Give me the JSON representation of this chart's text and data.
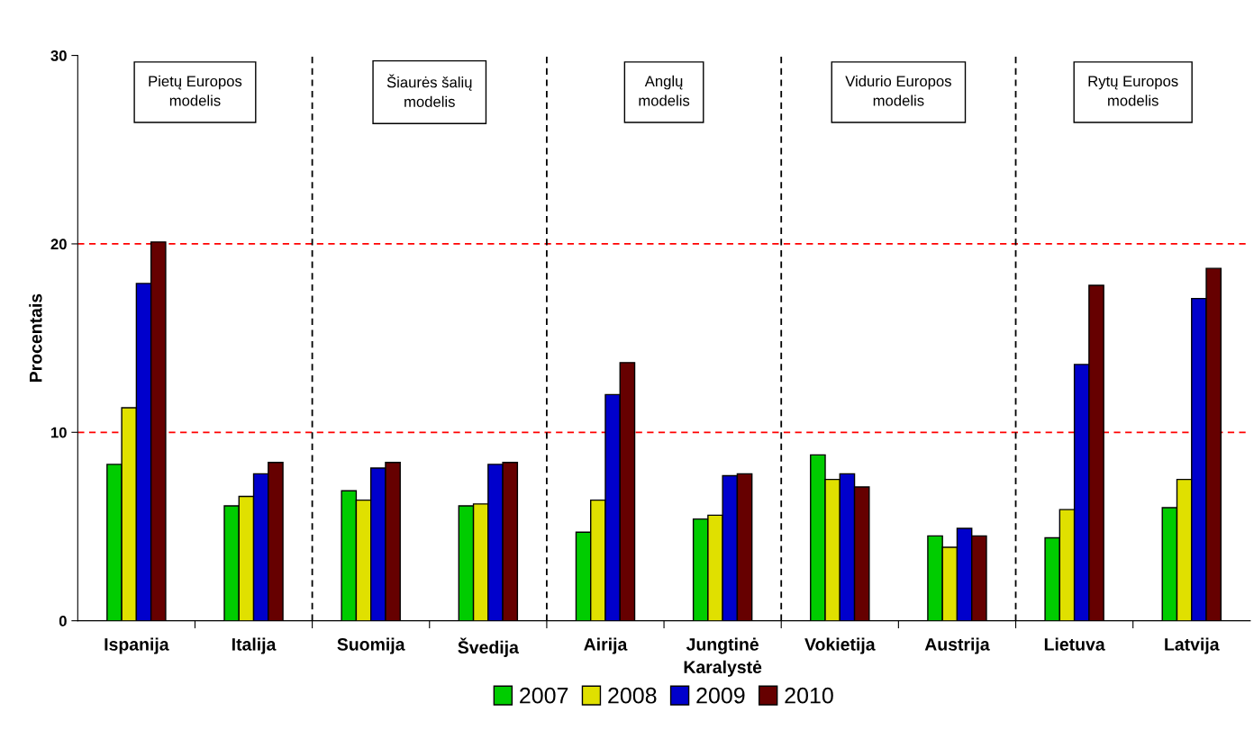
{
  "chart_data": {
    "type": "bar",
    "ylabel": "Procentais",
    "categories": [
      "Ispanija",
      "Italija",
      "Suomija",
      "Švedija",
      "Airija",
      "Jungtinė\nKaralystė",
      "Vokietija",
      "Austrija",
      "Lietuva",
      "Latvija"
    ],
    "series": [
      {
        "name": "2007",
        "color": "#00cc00",
        "values": [
          8.3,
          6.1,
          6.9,
          6.1,
          4.7,
          5.4,
          8.8,
          4.5,
          4.4,
          6.0
        ]
      },
      {
        "name": "2008",
        "color": "#e0e000",
        "values": [
          11.3,
          6.6,
          6.4,
          6.2,
          6.4,
          5.6,
          7.5,
          3.9,
          5.9,
          7.5
        ]
      },
      {
        "name": "2009",
        "color": "#0000cc",
        "values": [
          17.9,
          7.8,
          8.1,
          8.3,
          12.0,
          7.7,
          7.8,
          4.9,
          13.6,
          17.1
        ]
      },
      {
        "name": "2010",
        "color": "#660000",
        "values": [
          20.1,
          8.4,
          8.4,
          8.4,
          13.7,
          7.8,
          7.1,
          4.5,
          17.8,
          18.7
        ]
      }
    ],
    "ylim": [
      0,
      30
    ],
    "yticks": [
      0,
      10,
      20,
      30
    ],
    "grid": false,
    "legend": "bottom",
    "ref_lines": [
      {
        "axis": "y",
        "value": 10,
        "color": "#ff0000",
        "line_style": "dashed"
      },
      {
        "axis": "y",
        "value": 20,
        "color": "#ff0000",
        "line_style": "dashed"
      }
    ],
    "annotations": [
      "Pietų Europos\nmodelis",
      "Šiaurės šalių\nmodelis",
      "Anglų\nmodelis",
      "Vidurio Europos\nmodelis",
      "Rytų Europos\nmodelis"
    ]
  }
}
